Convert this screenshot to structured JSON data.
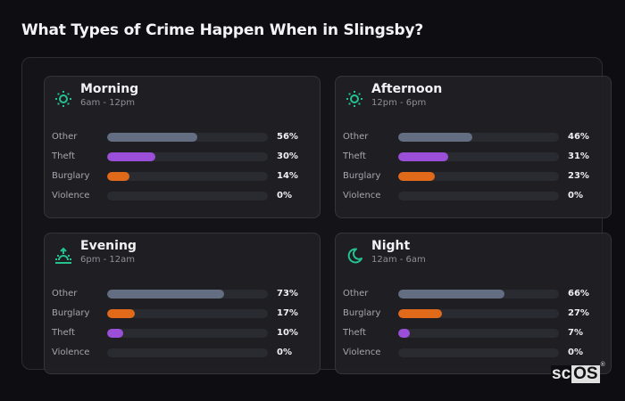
{
  "page": {
    "title": "What Types of Crime Happen When in Slingsby?"
  },
  "colors": {
    "background": "#0e0e12",
    "card": "#202025",
    "track": "#2a2a31",
    "icon_accent": "#25c28e",
    "other": "#646e82",
    "theft": "#9b4fd8",
    "burglary": "#e0691a",
    "violence": "#c23b3b"
  },
  "cards": [
    {
      "icon": "sun-icon",
      "title": "Morning",
      "subtitle": "6am - 12pm",
      "rows": [
        {
          "label": "Other",
          "pct": "56%",
          "value": 56,
          "color": "#646e82"
        },
        {
          "label": "Theft",
          "pct": "30%",
          "value": 30,
          "color": "#9b4fd8"
        },
        {
          "label": "Burglary",
          "pct": "14%",
          "value": 14,
          "color": "#e0691a"
        },
        {
          "label": "Violence",
          "pct": "0%",
          "value": 0,
          "color": "#c23b3b"
        }
      ]
    },
    {
      "icon": "sun-icon",
      "title": "Afternoon",
      "subtitle": "12pm - 6pm",
      "rows": [
        {
          "label": "Other",
          "pct": "46%",
          "value": 46,
          "color": "#646e82"
        },
        {
          "label": "Theft",
          "pct": "31%",
          "value": 31,
          "color": "#9b4fd8"
        },
        {
          "label": "Burglary",
          "pct": "23%",
          "value": 23,
          "color": "#e0691a"
        },
        {
          "label": "Violence",
          "pct": "0%",
          "value": 0,
          "color": "#c23b3b"
        }
      ]
    },
    {
      "icon": "sunset-icon",
      "title": "Evening",
      "subtitle": "6pm - 12am",
      "rows": [
        {
          "label": "Other",
          "pct": "73%",
          "value": 73,
          "color": "#646e82"
        },
        {
          "label": "Burglary",
          "pct": "17%",
          "value": 17,
          "color": "#e0691a"
        },
        {
          "label": "Theft",
          "pct": "10%",
          "value": 10,
          "color": "#9b4fd8"
        },
        {
          "label": "Violence",
          "pct": "0%",
          "value": 0,
          "color": "#c23b3b"
        }
      ]
    },
    {
      "icon": "moon-icon",
      "title": "Night",
      "subtitle": "12am - 6am",
      "rows": [
        {
          "label": "Other",
          "pct": "66%",
          "value": 66,
          "color": "#646e82"
        },
        {
          "label": "Burglary",
          "pct": "27%",
          "value": 27,
          "color": "#e0691a"
        },
        {
          "label": "Theft",
          "pct": "7%",
          "value": 7,
          "color": "#9b4fd8"
        },
        {
          "label": "Violence",
          "pct": "0%",
          "value": 0,
          "color": "#c23b3b"
        }
      ]
    }
  ],
  "logo": {
    "part1": "sc",
    "part2": "OS",
    "mark": "®"
  }
}
